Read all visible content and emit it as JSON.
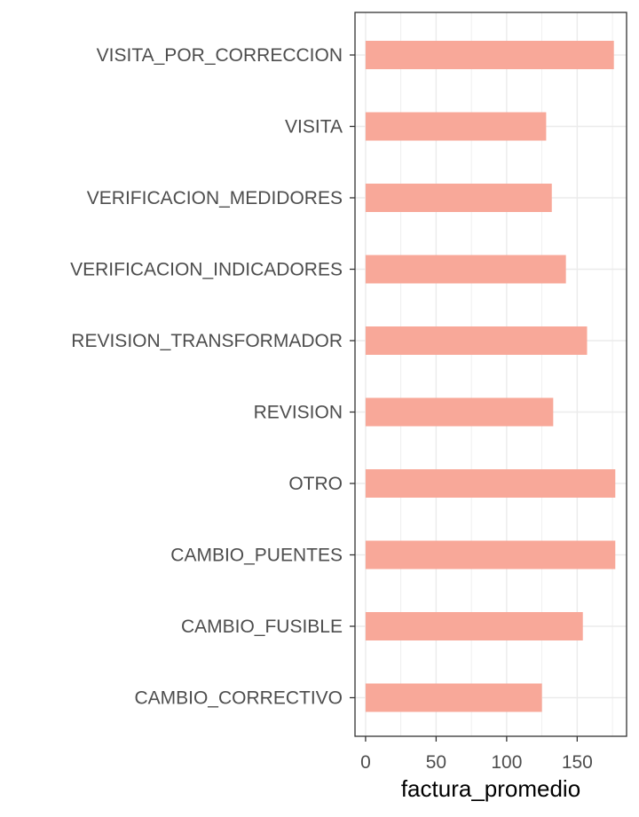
{
  "chart_data": {
    "type": "bar",
    "orientation": "horizontal",
    "categories": [
      "VISITA_POR_CORRECCION",
      "VISITA",
      "VERIFICACION_MEDIDORES",
      "VERIFICACION_INDICADORES",
      "REVISION_TRANSFORMADOR",
      "REVISION",
      "OTRO",
      "CAMBIO_PUENTES",
      "CAMBIO_FUSIBLE",
      "CAMBIO_CORRECTIVO"
    ],
    "values": [
      176,
      128,
      132,
      142,
      157,
      133,
      177,
      177,
      154,
      125
    ],
    "xlabel": "factura_promedio",
    "ylabel": "",
    "xlim": [
      -7.5,
      185
    ],
    "xticks": [
      "0",
      "50",
      "100",
      "150"
    ],
    "grid": true,
    "bar_color": "#f8a899",
    "panel_border_color": "#333333",
    "grid_color": "#ebebeb"
  }
}
